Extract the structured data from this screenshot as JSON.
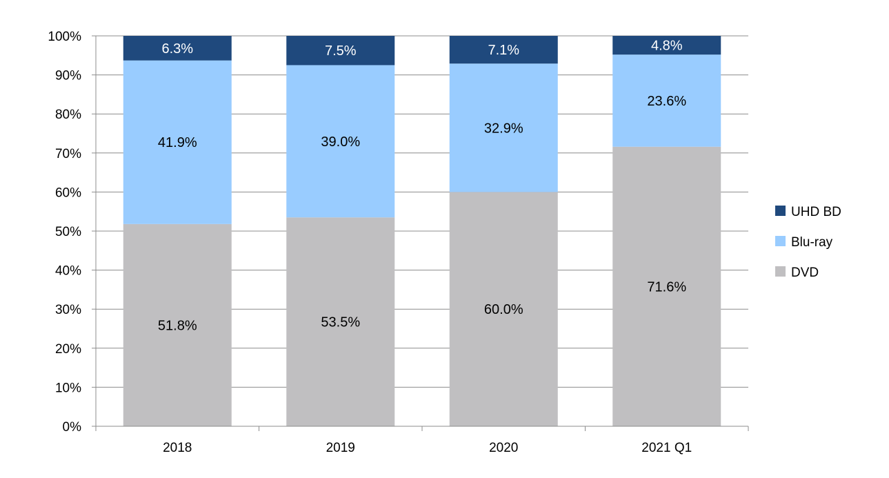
{
  "chart_data": {
    "type": "bar",
    "stacked": true,
    "categories": [
      "2018",
      "2019",
      "2020",
      "2021 Q1"
    ],
    "series": [
      {
        "name": "DVD",
        "color": "#c0bfc1",
        "label_color": "#000000",
        "values": [
          51.8,
          53.5,
          60.0,
          71.6
        ],
        "labels": [
          "51.8%",
          "53.5%",
          "60.0%",
          "71.6%"
        ]
      },
      {
        "name": "Blu-ray",
        "color": "#99ccff",
        "label_color": "#000000",
        "values": [
          41.9,
          39.0,
          32.9,
          23.6
        ],
        "labels": [
          "41.9%",
          "39.0%",
          "32.9%",
          "23.6%"
        ]
      },
      {
        "name": "UHD BD",
        "color": "#1f497d",
        "label_color": "#ffffff",
        "values": [
          6.3,
          7.5,
          7.1,
          4.8
        ],
        "labels": [
          "6.3%",
          "7.5%",
          "7.1%",
          "4.8%"
        ]
      }
    ],
    "legend_order": [
      "UHD BD",
      "Blu-ray",
      "DVD"
    ],
    "y_ticks": [
      "0%",
      "10%",
      "20%",
      "30%",
      "40%",
      "50%",
      "60%",
      "70%",
      "80%",
      "90%",
      "100%"
    ],
    "ylim": [
      0,
      100
    ],
    "grid": true,
    "legend_position": "right",
    "title": "",
    "xlabel": "",
    "ylabel": ""
  }
}
